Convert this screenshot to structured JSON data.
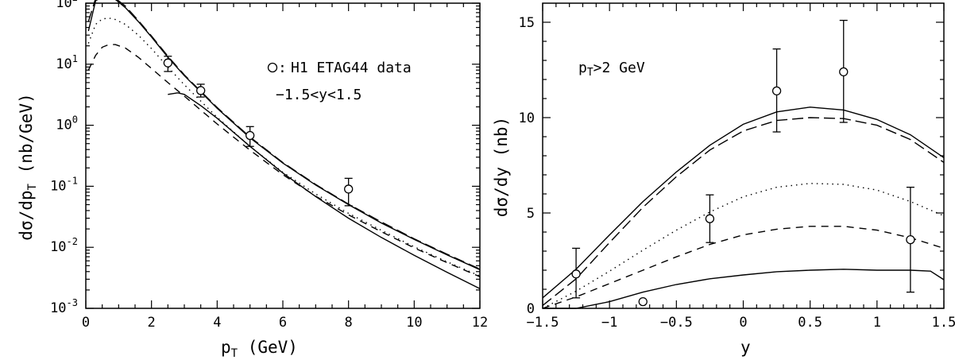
{
  "chart_data": [
    {
      "type": "line",
      "yscale": "log",
      "xlim": [
        0,
        12
      ],
      "ylim_exp": [
        -3,
        2
      ],
      "x_ticks": [
        "0",
        "2",
        "4",
        "6",
        "8",
        "10",
        "12"
      ],
      "y_ticks": [
        {
          "base": "10",
          "exp": "-3"
        },
        {
          "base": "10",
          "exp": "-2"
        },
        {
          "base": "10",
          "exp": "-1"
        },
        {
          "base": "10",
          "exp": "0"
        },
        {
          "base": "10",
          "exp": "1"
        },
        {
          "base": "10",
          "exp": "2"
        }
      ],
      "xlabel": {
        "main": "p",
        "sub": "T",
        "rest": " (GeV)"
      },
      "ylabel": {
        "pre": "dσ/dp",
        "sub": "T",
        "post": " (nb/GeV)"
      },
      "legend_text": "H1 ETAG44 data",
      "legend_prefix": ":",
      "annotation": "−1.5<y<1.5",
      "legend_placement": "top-right",
      "series": [
        {
          "style": "solid",
          "x": [
            0.08,
            0.3,
            0.5,
            0.7,
            0.9,
            1.2,
            1.6,
            2,
            2.5,
            3,
            4,
            5,
            6,
            7,
            8,
            9,
            10,
            11,
            12
          ],
          "y": [
            35,
            110,
            125,
            125,
            115,
            85,
            50,
            28,
            13,
            6.5,
            1.9,
            0.62,
            0.24,
            0.105,
            0.05,
            0.025,
            0.0135,
            0.0075,
            0.0043
          ]
        },
        {
          "style": "long-dash",
          "x": [
            0.08,
            0.3,
            0.5,
            0.7,
            0.9,
            1.2,
            1.6,
            2,
            2.5,
            3,
            4,
            5,
            6,
            7,
            8,
            9,
            10,
            11,
            12
          ],
          "y": [
            50,
            120,
            135,
            135,
            120,
            90,
            52,
            29,
            13.5,
            6.7,
            1.95,
            0.64,
            0.245,
            0.107,
            0.051,
            0.026,
            0.0138,
            0.0077,
            0.0044
          ]
        },
        {
          "style": "dotted",
          "x": [
            0.08,
            0.3,
            0.5,
            0.7,
            0.9,
            1.2,
            1.6,
            2,
            2.5,
            3,
            4,
            5,
            6,
            7,
            8,
            9,
            10,
            11,
            12
          ],
          "y": [
            22,
            45,
            55,
            57,
            54,
            45,
            30,
            18,
            9,
            4.6,
            1.35,
            0.45,
            0.17,
            0.075,
            0.036,
            0.019,
            0.0102,
            0.0058,
            0.0034
          ]
        },
        {
          "style": "dashed",
          "x": [
            0.08,
            0.3,
            0.5,
            0.7,
            0.9,
            1.2,
            1.6,
            2,
            2.5,
            3,
            4,
            5,
            6,
            7,
            8,
            9,
            10,
            11,
            12
          ],
          "y": [
            8,
            14,
            19,
            21,
            21,
            18.5,
            13,
            8.5,
            5,
            3,
            1.05,
            0.39,
            0.155,
            0.069,
            0.034,
            0.018,
            0.0098,
            0.0056,
            0.0033
          ]
        },
        {
          "style": "solid",
          "x": [
            2.5,
            2.8,
            3,
            3.5,
            4,
            5,
            6,
            7,
            8,
            9,
            10,
            11,
            12
          ],
          "y": [
            3.2,
            3.4,
            3.2,
            2.1,
            1.3,
            0.45,
            0.165,
            0.068,
            0.03,
            0.0145,
            0.0074,
            0.0039,
            0.0021
          ]
        }
      ],
      "points": [
        {
          "x": 2.5,
          "y": 10.5,
          "lo": 7.6,
          "hi": 13.5
        },
        {
          "x": 3.5,
          "y": 3.7,
          "lo": 2.9,
          "hi": 4.7
        },
        {
          "x": 5.0,
          "y": 0.68,
          "lo": 0.45,
          "hi": 0.95
        },
        {
          "x": 8.0,
          "y": 0.09,
          "lo": 0.048,
          "hi": 0.135
        }
      ]
    },
    {
      "type": "line",
      "yscale": "linear",
      "xlim": [
        -1.5,
        1.5
      ],
      "ylim": [
        0,
        16
      ],
      "x_ticks": [
        "−1.5",
        "−1",
        "−0.5",
        "0",
        "0.5",
        "1",
        "1.5"
      ],
      "y_ticks": [
        "0",
        "5",
        "10",
        "15"
      ],
      "xlabel": "y",
      "ylabel": "dσ/dy (nb)",
      "annotation": {
        "main": "p",
        "sub": "T",
        "rest": ">2 GeV"
      },
      "series": [
        {
          "style": "solid",
          "x": [
            -1.5,
            -1.25,
            -1,
            -0.75,
            -0.5,
            -0.25,
            0,
            0.25,
            0.5,
            0.75,
            1,
            1.25,
            1.5
          ],
          "y": [
            0.55,
            2.05,
            3.85,
            5.6,
            7.15,
            8.55,
            9.65,
            10.3,
            10.55,
            10.4,
            9.9,
            9.1,
            7.9
          ]
        },
        {
          "style": "long-dash",
          "x": [
            -1.5,
            -1.25,
            -1,
            -0.75,
            -0.5,
            -0.25,
            0,
            0.25,
            0.5,
            0.75,
            1,
            1.25,
            1.5
          ],
          "y": [
            0.15,
            1.55,
            3.45,
            5.3,
            6.9,
            8.3,
            9.3,
            9.85,
            10.0,
            9.95,
            9.6,
            8.85,
            7.65
          ]
        },
        {
          "style": "dotted",
          "x": [
            -1.5,
            -1.25,
            -1,
            -0.75,
            -0.5,
            -0.25,
            0,
            0.25,
            0.5,
            0.75,
            1,
            1.25,
            1.5
          ],
          "y": [
            0.0,
            0.9,
            1.95,
            3.05,
            4.1,
            5.05,
            5.85,
            6.35,
            6.55,
            6.5,
            6.2,
            5.6,
            4.85
          ]
        },
        {
          "style": "dashed",
          "x": [
            -1.5,
            -1.25,
            -1,
            -0.75,
            -0.5,
            -0.25,
            0,
            0.25,
            0.5,
            0.75,
            1,
            1.25,
            1.5
          ],
          "y": [
            0.0,
            0.6,
            1.3,
            2.0,
            2.7,
            3.35,
            3.85,
            4.15,
            4.3,
            4.3,
            4.1,
            3.7,
            3.15
          ]
        },
        {
          "style": "solid",
          "x": [
            -1.5,
            -1.25,
            -1,
            -0.75,
            -0.5,
            -0.25,
            0,
            0.25,
            0.5,
            0.75,
            1,
            1.25,
            1.4,
            1.5
          ],
          "y": [
            0.0,
            0.0,
            0.35,
            0.85,
            1.25,
            1.55,
            1.75,
            1.92,
            2.0,
            2.05,
            2.0,
            2.0,
            1.95,
            1.5
          ]
        }
      ],
      "points": [
        {
          "x": -1.25,
          "y": 1.8,
          "lo": 0.55,
          "hi": 3.15
        },
        {
          "x": -0.75,
          "y": 0.35,
          "lo": null,
          "hi": null
        },
        {
          "x": -0.25,
          "y": 4.7,
          "lo": 3.45,
          "hi": 5.95
        },
        {
          "x": 0.25,
          "y": 11.4,
          "lo": 9.25,
          "hi": 13.6
        },
        {
          "x": 0.75,
          "y": 12.4,
          "lo": 9.75,
          "hi": 15.1
        },
        {
          "x": 1.25,
          "y": 3.6,
          "lo": 0.85,
          "hi": 6.35
        }
      ]
    }
  ]
}
